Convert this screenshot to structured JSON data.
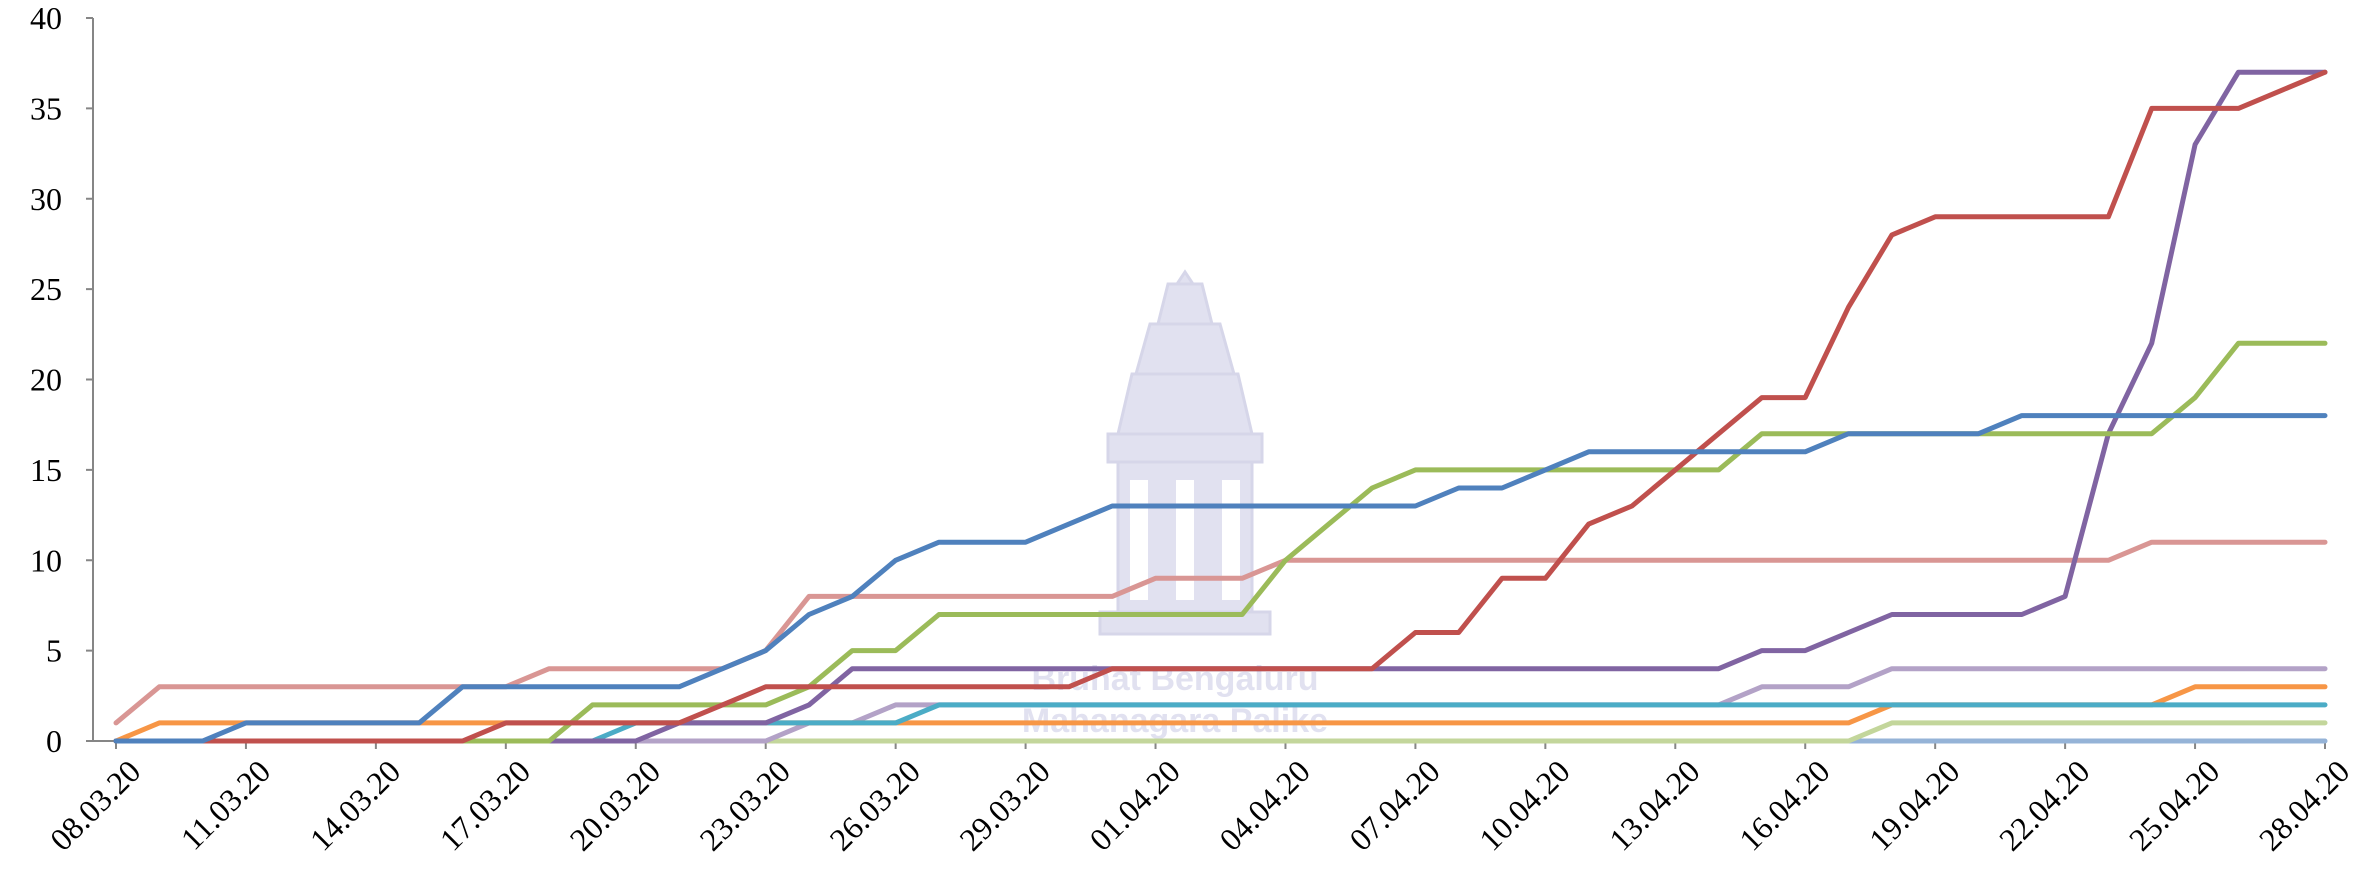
{
  "watermark": {
    "line1": "Bruhat Bengaluru",
    "line2": "Mahanagara Palike",
    "logo_icon": "temple-emblem-icon",
    "color": "#c9c9e4"
  },
  "chart_data": {
    "type": "line",
    "title": "",
    "xlabel": "",
    "ylabel": "",
    "ylim": [
      0,
      40
    ],
    "yticks": [
      "0",
      "5",
      "10",
      "15",
      "20",
      "25",
      "30",
      "35",
      "40"
    ],
    "x": [
      "08.03.20",
      "09.03.20",
      "10.03.20",
      "11.03.20",
      "12.03.20",
      "13.03.20",
      "14.03.20",
      "15.03.20",
      "16.03.20",
      "17.03.20",
      "18.03.20",
      "19.03.20",
      "20.03.20",
      "21.03.20",
      "22.03.20",
      "23.03.20",
      "24.03.20",
      "25.03.20",
      "26.03.20",
      "27.03.20",
      "28.03.20",
      "29.03.20",
      "30.03.20",
      "31.03.20",
      "01.04.20",
      "02.04.20",
      "03.04.20",
      "04.04.20",
      "05.04.20",
      "06.04.20",
      "07.04.20",
      "08.04.20",
      "09.04.20",
      "10.04.20",
      "11.04.20",
      "12.04.20",
      "13.04.20",
      "14.04.20",
      "15.04.20",
      "16.04.20",
      "17.04.20",
      "18.04.20",
      "19.04.20",
      "20.04.20",
      "21.04.20",
      "22.04.20",
      "23.04.20",
      "24.04.20",
      "25.04.20",
      "26.04.20",
      "27.04.20",
      "28.04.20"
    ],
    "xticks": [
      "08.03.20",
      "11.03.20",
      "14.03.20",
      "17.03.20",
      "20.03.20",
      "23.03.20",
      "26.03.20",
      "29.03.20",
      "01.04.20",
      "04.04.20",
      "07.04.20",
      "10.04.20",
      "13.04.20",
      "16.04.20",
      "19.04.20",
      "22.04.20",
      "25.04.20",
      "28.04.20"
    ],
    "grid": false,
    "legend": "none",
    "series": [
      {
        "color": "#4f81bd",
        "values": [
          0,
          0,
          0,
          1,
          1,
          1,
          1,
          1,
          3,
          3,
          3,
          3,
          3,
          3,
          4,
          5,
          7,
          8,
          10,
          11,
          11,
          11,
          12,
          13,
          13,
          13,
          13,
          13,
          13,
          13,
          13,
          14,
          14,
          15,
          16,
          16,
          16,
          16,
          16,
          16,
          17,
          17,
          17,
          17,
          18,
          18,
          18,
          18,
          18,
          18,
          18,
          18
        ]
      },
      {
        "color": "#c0504d",
        "values": [
          0,
          0,
          0,
          0,
          0,
          0,
          0,
          0,
          0,
          1,
          1,
          1,
          1,
          1,
          2,
          3,
          3,
          3,
          3,
          3,
          3,
          3,
          3,
          4,
          4,
          4,
          4,
          4,
          4,
          4,
          6,
          6,
          9,
          9,
          12,
          13,
          15,
          17,
          19,
          19,
          24,
          28,
          29,
          29,
          29,
          29,
          29,
          35,
          35,
          35,
          36,
          37
        ]
      },
      {
        "color": "#9bbb59",
        "values": [
          0,
          0,
          0,
          0,
          0,
          0,
          0,
          0,
          0,
          0,
          0,
          2,
          2,
          2,
          2,
          2,
          3,
          5,
          5,
          7,
          7,
          7,
          7,
          7,
          7,
          7,
          7,
          10,
          12,
          14,
          15,
          15,
          15,
          15,
          15,
          15,
          15,
          15,
          17,
          17,
          17,
          17,
          17,
          17,
          17,
          17,
          17,
          17,
          19,
          22,
          22,
          22
        ]
      },
      {
        "color": "#8064a2",
        "values": [
          0,
          0,
          0,
          0,
          0,
          0,
          0,
          0,
          0,
          0,
          0,
          0,
          0,
          1,
          1,
          1,
          2,
          4,
          4,
          4,
          4,
          4,
          4,
          4,
          4,
          4,
          4,
          4,
          4,
          4,
          4,
          4,
          4,
          4,
          4,
          4,
          4,
          4,
          5,
          5,
          6,
          7,
          7,
          7,
          7,
          8,
          17,
          22,
          33,
          37,
          37,
          37
        ]
      },
      {
        "color": "#4bacc6",
        "values": [
          0,
          0,
          0,
          0,
          0,
          0,
          0,
          0,
          0,
          0,
          0,
          0,
          1,
          1,
          1,
          1,
          1,
          1,
          1,
          2,
          2,
          2,
          2,
          2,
          2,
          2,
          2,
          2,
          2,
          2,
          2,
          2,
          2,
          2,
          2,
          2,
          2,
          2,
          2,
          2,
          2,
          2,
          2,
          2,
          2,
          2,
          2,
          2,
          2,
          2,
          2,
          2
        ]
      },
      {
        "color": "#f79646",
        "values": [
          0,
          1,
          1,
          1,
          1,
          1,
          1,
          1,
          1,
          1,
          1,
          1,
          1,
          1,
          1,
          1,
          1,
          1,
          1,
          1,
          1,
          1,
          1,
          1,
          1,
          1,
          1,
          1,
          1,
          1,
          1,
          1,
          1,
          1,
          1,
          1,
          1,
          1,
          1,
          1,
          1,
          2,
          2,
          2,
          2,
          2,
          2,
          2,
          3,
          3,
          3,
          3
        ]
      },
      {
        "color": "#d99694",
        "values": [
          1,
          3,
          3,
          3,
          3,
          3,
          3,
          3,
          3,
          3,
          4,
          4,
          4,
          4,
          4,
          5,
          8,
          8,
          8,
          8,
          8,
          8,
          8,
          8,
          9,
          9,
          9,
          10,
          10,
          10,
          10,
          10,
          10,
          10,
          10,
          10,
          10,
          10,
          10,
          10,
          10,
          10,
          10,
          10,
          10,
          10,
          10,
          11,
          11,
          11,
          11,
          11
        ]
      },
      {
        "color": "#b3a2c7",
        "values": [
          0,
          0,
          0,
          0,
          0,
          0,
          0,
          0,
          0,
          0,
          0,
          0,
          0,
          0,
          0,
          0,
          1,
          1,
          2,
          2,
          2,
          2,
          2,
          2,
          2,
          2,
          2,
          2,
          2,
          2,
          2,
          2,
          2,
          2,
          2,
          2,
          2,
          2,
          3,
          3,
          3,
          4,
          4,
          4,
          4,
          4,
          4,
          4,
          4,
          4,
          4,
          4
        ]
      },
      {
        "color": "#c3d69b",
        "values": [
          0,
          0,
          0,
          0,
          0,
          0,
          0,
          0,
          0,
          0,
          0,
          0,
          0,
          0,
          0,
          0,
          0,
          0,
          0,
          0,
          0,
          0,
          0,
          0,
          0,
          0,
          0,
          0,
          0,
          0,
          0,
          0,
          0,
          0,
          0,
          0,
          0,
          0,
          0,
          0,
          0,
          1,
          1,
          1,
          1,
          1,
          1,
          1,
          1,
          1,
          1,
          1
        ]
      },
      {
        "color": "#95b3d7",
        "values": [
          0,
          0,
          0,
          0,
          0,
          0,
          0,
          0,
          0,
          0,
          0,
          0,
          0,
          0,
          0,
          0,
          0,
          0,
          0,
          0,
          0,
          0,
          0,
          0,
          0,
          0,
          0,
          0,
          0,
          0,
          0,
          0,
          0,
          0,
          0,
          0,
          0,
          0,
          0,
          0,
          0,
          0,
          0,
          0,
          0,
          0,
          0,
          0,
          0,
          0,
          0,
          0
        ]
      }
    ]
  }
}
